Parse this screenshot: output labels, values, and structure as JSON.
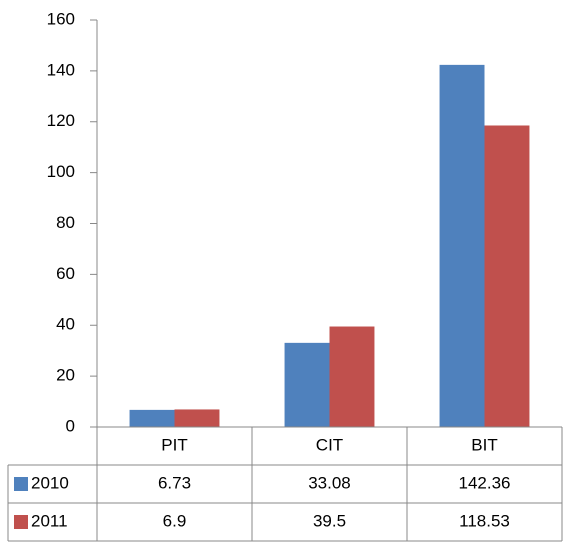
{
  "chart_data": {
    "type": "bar",
    "categories": [
      "PIT",
      "CIT",
      "BIT"
    ],
    "series": [
      {
        "name": "2010",
        "color": "#4f81bd",
        "values": [
          6.73,
          33.08,
          142.36
        ]
      },
      {
        "name": "2011",
        "color": "#c0504d",
        "values": [
          6.9,
          39.5,
          118.53
        ]
      }
    ],
    "ylim": [
      0,
      160
    ],
    "yticks": [
      0,
      20,
      40,
      60,
      80,
      100,
      120,
      140,
      160
    ],
    "grid": false,
    "legend": "data-table"
  }
}
